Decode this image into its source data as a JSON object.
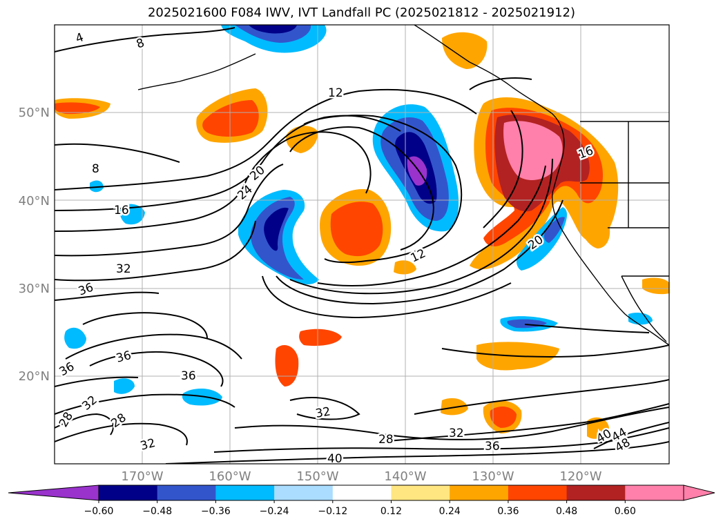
{
  "title": "2025021600 F084 IWV, IVT Landfall PC (2025021812 - 2025021912)",
  "lat_labels": [
    "50°N",
    "40°N",
    "30°N",
    "20°N"
  ],
  "lon_labels": [
    "170°W",
    "160°W",
    "150°W",
    "140°W",
    "130°W",
    "120°W"
  ],
  "colorbar": {
    "ticks": [
      "−0.60",
      "−0.48",
      "−0.36",
      "−0.24",
      "−0.12",
      "0.12",
      "0.24",
      "0.36",
      "0.48",
      "0.60"
    ],
    "colors": [
      "#9933cc",
      "#000088",
      "#3355cc",
      "#00bbff",
      "#aaddff",
      "#ffffff",
      "#ffe680",
      "#ffa500",
      "#ff4500",
      "#b22222",
      "#ff80aa",
      "#ff80aa"
    ]
  },
  "contour_labels": [
    "4",
    "8",
    "8",
    "12",
    "12",
    "16",
    "16",
    "20",
    "20",
    "24",
    "32",
    "36",
    "36",
    "36",
    "36",
    "32",
    "28",
    "28",
    "32",
    "32",
    "28",
    "32",
    "36",
    "40",
    "40",
    "44",
    "48"
  ]
}
